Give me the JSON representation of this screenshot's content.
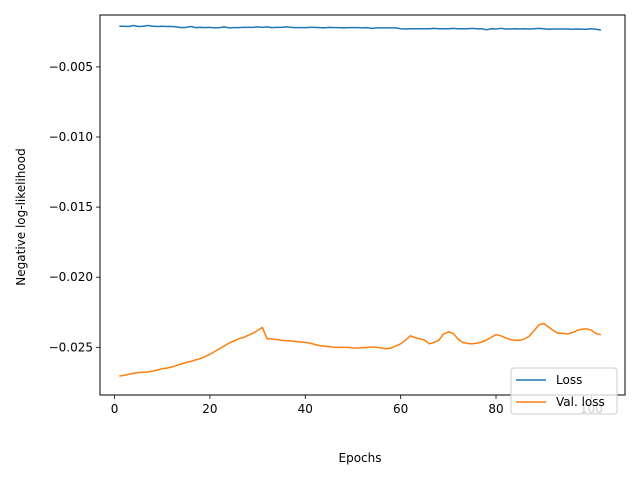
{
  "chart_data": {
    "type": "line",
    "title": "",
    "xlabel": "Epochs",
    "ylabel": "Negative log-likelihood",
    "xlim": [
      -3.05,
      107.05
    ],
    "ylim": [
      -0.0284,
      -0.0013
    ],
    "xticks": [
      0,
      20,
      40,
      60,
      80,
      100
    ],
    "xtick_labels": [
      "0",
      "20",
      "40",
      "60",
      "80",
      "100"
    ],
    "yticks": [
      -0.005,
      -0.01,
      -0.015,
      -0.02,
      -0.025
    ],
    "ytick_labels": [
      "−0.005",
      "−0.010",
      "−0.015",
      "−0.020",
      "−0.025"
    ],
    "grid": false,
    "legend_position": "lower right",
    "series": [
      {
        "name": "Loss",
        "color": "#1f77b4",
        "x": [
          1,
          2,
          3,
          4,
          5,
          6,
          7,
          8,
          9,
          10,
          11,
          12,
          13,
          14,
          15,
          16,
          17,
          18,
          19,
          20,
          21,
          22,
          23,
          24,
          25,
          26,
          27,
          28,
          29,
          30,
          31,
          32,
          33,
          34,
          35,
          36,
          37,
          38,
          39,
          40,
          41,
          42,
          43,
          44,
          45,
          46,
          47,
          48,
          49,
          50,
          51,
          52,
          53,
          54,
          55,
          56,
          57,
          58,
          59,
          60,
          61,
          62,
          63,
          64,
          65,
          66,
          67,
          68,
          69,
          70,
          71,
          72,
          73,
          74,
          75,
          76,
          77,
          78,
          79,
          80,
          81,
          82,
          83,
          84,
          85,
          86,
          87,
          88,
          89,
          90,
          91,
          92,
          93,
          94,
          95,
          96,
          97,
          98,
          99,
          100,
          101,
          102
        ],
        "y": [
          -0.0021,
          -0.0021,
          -0.00212,
          -0.00205,
          -0.00212,
          -0.0021,
          -0.00205,
          -0.0021,
          -0.00212,
          -0.0021,
          -0.00212,
          -0.00212,
          -0.00215,
          -0.0022,
          -0.00218,
          -0.00212,
          -0.0022,
          -0.00218,
          -0.0022,
          -0.00218,
          -0.00222,
          -0.0022,
          -0.00215,
          -0.00222,
          -0.0022,
          -0.0022,
          -0.00218,
          -0.00218,
          -0.00218,
          -0.00215,
          -0.00218,
          -0.00215,
          -0.0022,
          -0.00218,
          -0.00218,
          -0.00215,
          -0.00218,
          -0.0022,
          -0.0022,
          -0.0022,
          -0.00218,
          -0.00218,
          -0.0022,
          -0.00222,
          -0.00218,
          -0.0022,
          -0.0022,
          -0.00222,
          -0.0022,
          -0.0022,
          -0.0022,
          -0.00222,
          -0.0022,
          -0.00225,
          -0.00222,
          -0.00222,
          -0.00222,
          -0.00222,
          -0.00222,
          -0.00228,
          -0.0023,
          -0.00228,
          -0.00228,
          -0.00228,
          -0.00228,
          -0.00228,
          -0.00225,
          -0.00228,
          -0.00228,
          -0.00228,
          -0.00225,
          -0.00228,
          -0.00228,
          -0.00228,
          -0.00225,
          -0.00228,
          -0.00228,
          -0.00235,
          -0.00228,
          -0.0023,
          -0.00225,
          -0.0023,
          -0.0023,
          -0.00228,
          -0.0023,
          -0.00228,
          -0.0023,
          -0.00228,
          -0.00225,
          -0.00228,
          -0.00232,
          -0.0023,
          -0.0023,
          -0.0023,
          -0.0023,
          -0.00232,
          -0.0023,
          -0.00232,
          -0.00232,
          -0.00228,
          -0.00232,
          -0.00238
        ]
      },
      {
        "name": "Val. loss",
        "color": "#ff7f0e",
        "x": [
          1,
          2,
          3,
          4,
          5,
          6,
          7,
          8,
          9,
          10,
          11,
          12,
          13,
          14,
          15,
          16,
          17,
          18,
          19,
          20,
          21,
          22,
          23,
          24,
          25,
          26,
          27,
          28,
          29,
          30,
          31,
          32,
          33,
          34,
          35,
          36,
          37,
          38,
          39,
          40,
          41,
          42,
          43,
          44,
          45,
          46,
          47,
          48,
          49,
          50,
          51,
          52,
          53,
          54,
          55,
          56,
          57,
          58,
          59,
          60,
          61,
          62,
          63,
          64,
          65,
          66,
          67,
          68,
          69,
          70,
          71,
          72,
          73,
          74,
          75,
          76,
          77,
          78,
          79,
          80,
          81,
          82,
          83,
          84,
          85,
          86,
          87,
          88,
          89,
          90,
          91,
          92,
          93,
          94,
          95,
          96,
          97,
          98,
          99,
          100,
          101,
          102
        ],
        "y": [
          -0.02705,
          -0.027,
          -0.02692,
          -0.02685,
          -0.0268,
          -0.02678,
          -0.02675,
          -0.0267,
          -0.02662,
          -0.02652,
          -0.02648,
          -0.0264,
          -0.0263,
          -0.02618,
          -0.02608,
          -0.026,
          -0.0259,
          -0.0258,
          -0.02565,
          -0.0255,
          -0.0253,
          -0.0251,
          -0.0249,
          -0.0247,
          -0.02455,
          -0.0244,
          -0.0243,
          -0.02415,
          -0.024,
          -0.0238,
          -0.02358,
          -0.0244,
          -0.0244,
          -0.02445,
          -0.0245,
          -0.02452,
          -0.02455,
          -0.02458,
          -0.02462,
          -0.02465,
          -0.0247,
          -0.0248,
          -0.02488,
          -0.02492,
          -0.02495,
          -0.025,
          -0.025,
          -0.025,
          -0.025,
          -0.02505,
          -0.02505,
          -0.02502,
          -0.025,
          -0.02498,
          -0.025,
          -0.02505,
          -0.0251,
          -0.02505,
          -0.0249,
          -0.02475,
          -0.0245,
          -0.02418,
          -0.0243,
          -0.0244,
          -0.02448,
          -0.02475,
          -0.02465,
          -0.0245,
          -0.02405,
          -0.0239,
          -0.024,
          -0.0244,
          -0.02465,
          -0.02472,
          -0.02475,
          -0.0247,
          -0.02462,
          -0.02448,
          -0.02428,
          -0.0241,
          -0.02418,
          -0.02432,
          -0.02445,
          -0.0245,
          -0.0245,
          -0.0244,
          -0.0242,
          -0.0238,
          -0.0234,
          -0.0233,
          -0.02355,
          -0.0238,
          -0.024,
          -0.024,
          -0.02405,
          -0.02395,
          -0.0238,
          -0.0237,
          -0.02368,
          -0.02378,
          -0.02402,
          -0.0241
        ]
      }
    ]
  }
}
